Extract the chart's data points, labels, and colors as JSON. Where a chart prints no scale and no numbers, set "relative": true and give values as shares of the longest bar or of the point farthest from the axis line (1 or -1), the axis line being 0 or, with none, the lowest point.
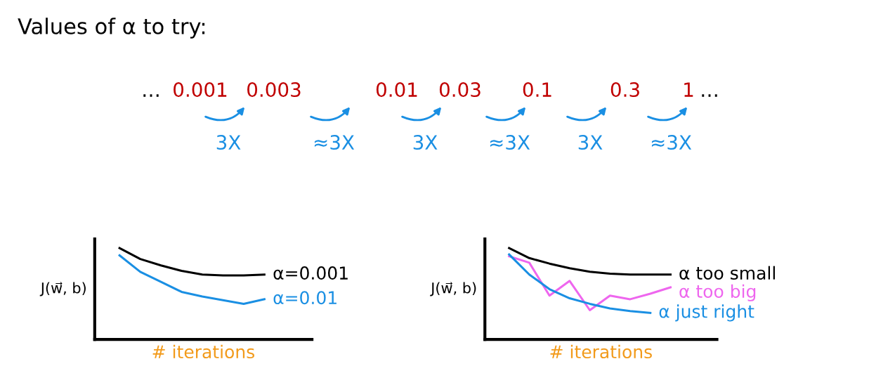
{
  "chart_data": [
    {
      "type": "other",
      "title": "Values of α to try:",
      "annotations": [
        "…",
        "0.001",
        "0.003",
        "0.01",
        "0.03",
        "0.1",
        "0.3",
        "1",
        "…",
        "3X",
        "≈3X",
        "3X",
        "≈3X",
        "3X",
        "≈3X"
      ]
    },
    {
      "type": "line",
      "relative": true,
      "ylabel": "J(w⃗, b)",
      "xlabel": "# iterations",
      "categories": [
        null,
        null,
        null,
        null,
        null,
        null,
        null,
        null
      ],
      "series": [
        {
          "name": "α=0.001",
          "color": "#000000",
          "values": [
            1.0,
            0.88,
            0.81,
            0.75,
            0.71,
            0.7,
            0.7,
            0.71
          ]
        },
        {
          "name": "α=0.01",
          "color": "#1a8fe3",
          "values": [
            0.92,
            0.74,
            0.63,
            0.52,
            0.47,
            0.43,
            0.39,
            0.44
          ]
        }
      ],
      "grid": false
    },
    {
      "type": "line",
      "relative": true,
      "ylabel": "J(w⃗, b)",
      "xlabel": "# iterations",
      "categories": [
        null,
        null,
        null,
        null,
        null,
        null,
        null,
        null,
        null
      ],
      "series": [
        {
          "name": "α too small",
          "color": "#000000",
          "values": [
            1.0,
            0.89,
            0.83,
            0.78,
            0.74,
            0.72,
            0.71,
            0.71,
            0.71
          ]
        },
        {
          "name": "α too big",
          "color": "#ee66ee",
          "values": [
            0.91,
            0.84,
            0.48,
            0.64,
            0.32,
            0.48,
            0.44,
            0.5,
            0.57
          ]
        },
        {
          "name": "α just right",
          "color": "#1a8fe3",
          "values": [
            0.93,
            0.71,
            0.55,
            0.45,
            0.39,
            0.34,
            0.31,
            0.29,
            null
          ]
        }
      ],
      "grid": false
    }
  ]
}
